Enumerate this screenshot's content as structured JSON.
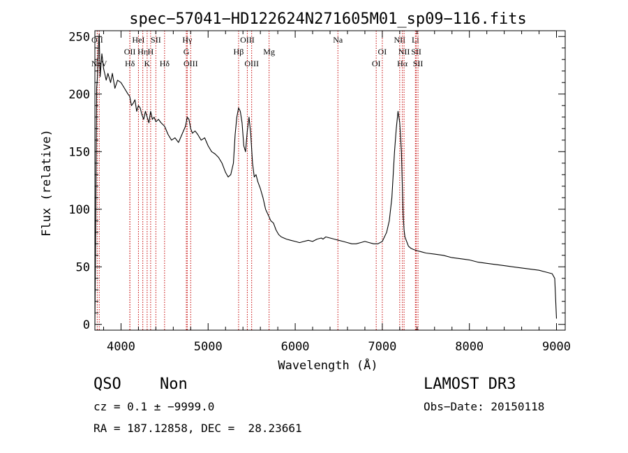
{
  "colors": {
    "axis": "#000000",
    "spectrum": "#000000",
    "line_marker": "#c40000",
    "background": "#ffffff"
  },
  "chart_data": {
    "type": "line",
    "title": "spec−57041−HD122624N271605M01_sp09−116.fits",
    "xlabel": "Wavelength (Å)",
    "ylabel": "Flux (relative)",
    "xlim": [
      3700,
      9100
    ],
    "ylim": [
      -5,
      255
    ],
    "x_ticks": [
      4000,
      5000,
      6000,
      7000,
      8000,
      9000
    ],
    "y_ticks": [
      0,
      50,
      100,
      150,
      200,
      250
    ],
    "x_tick_labels": [
      "4000",
      "5000",
      "6000",
      "7000",
      "8000",
      "9000"
    ],
    "y_tick_labels": [
      "0",
      "50",
      "100",
      "150",
      "200",
      "250"
    ],
    "grid": false,
    "series": [
      {
        "x": [
          3700,
          3710,
          3720,
          3730,
          3740,
          3750,
          3760,
          3780,
          3800,
          3830,
          3850,
          3880,
          3900,
          3930,
          3960,
          4000,
          4040,
          4080,
          4100,
          4120,
          4140,
          4160,
          4180,
          4200,
          4220,
          4240,
          4260,
          4280,
          4300,
          4320,
          4340,
          4360,
          4380,
          4400,
          4430,
          4460,
          4500,
          4540,
          4580,
          4620,
          4660,
          4700,
          4740,
          4760,
          4780,
          4800,
          4820,
          4850,
          4880,
          4920,
          4960,
          5000,
          5040,
          5080,
          5120,
          5160,
          5200,
          5230,
          5260,
          5290,
          5310,
          5330,
          5350,
          5370,
          5390,
          5410,
          5430,
          5450,
          5470,
          5490,
          5510,
          5530,
          5550,
          5570,
          5600,
          5630,
          5660,
          5690,
          5720,
          5750,
          5780,
          5810,
          5840,
          5870,
          5900,
          5950,
          6000,
          6050,
          6100,
          6150,
          6200,
          6250,
          6300,
          6320,
          6350,
          6400,
          6450,
          6500,
          6550,
          6600,
          6650,
          6700,
          6750,
          6800,
          6850,
          6900,
          6950,
          7000,
          7050,
          7080,
          7110,
          7140,
          7160,
          7180,
          7200,
          7220,
          7230,
          7240,
          7250,
          7260,
          7280,
          7300,
          7330,
          7360,
          7400,
          7450,
          7500,
          7600,
          7700,
          7800,
          7900,
          8000,
          8100,
          8200,
          8300,
          8400,
          8500,
          8600,
          8700,
          8800,
          8850,
          8900,
          8950,
          8980,
          9000
        ],
        "y": [
          0,
          90,
          205,
          215,
          240,
          252,
          215,
          235,
          222,
          212,
          218,
          210,
          218,
          205,
          212,
          210,
          205,
          200,
          198,
          190,
          192,
          195,
          185,
          190,
          188,
          182,
          178,
          185,
          180,
          175,
          185,
          178,
          180,
          176,
          178,
          175,
          172,
          165,
          160,
          162,
          158,
          165,
          172,
          180,
          178,
          170,
          166,
          168,
          165,
          160,
          162,
          155,
          150,
          148,
          145,
          140,
          132,
          128,
          130,
          140,
          165,
          180,
          188,
          185,
          175,
          155,
          150,
          168,
          180,
          165,
          140,
          128,
          130,
          124,
          118,
          110,
          100,
          95,
          90,
          88,
          82,
          78,
          76,
          75,
          74,
          73,
          72,
          71,
          72,
          73,
          72,
          74,
          75,
          74,
          76,
          75,
          74,
          73,
          72,
          71,
          70,
          70,
          71,
          72,
          71,
          70,
          70,
          72,
          80,
          90,
          110,
          150,
          170,
          185,
          175,
          150,
          120,
          95,
          82,
          76,
          72,
          68,
          66,
          65,
          64,
          63,
          62,
          61,
          60,
          58,
          57,
          56,
          54,
          53,
          52,
          51,
          50,
          49,
          48,
          47,
          46,
          45,
          44,
          40,
          5
        ]
      }
    ],
    "spectral_lines": [
      {
        "wavelength": 3727,
        "label": "OII",
        "row": 1
      },
      {
        "wavelength": 3750,
        "label": "NeV",
        "row": 3
      },
      {
        "wavelength": 4101,
        "label": "OII",
        "row": 2
      },
      {
        "wavelength": 4102,
        "label": "Hδ",
        "row": 3
      },
      {
        "wavelength": 4200,
        "label": "HeI",
        "row": 1
      },
      {
        "wavelength": 4250,
        "label": "Hη",
        "row": 2
      },
      {
        "wavelength": 4300,
        "label": "K",
        "row": 3
      },
      {
        "wavelength": 4340,
        "label": "H",
        "row": 2
      },
      {
        "wavelength": 4400,
        "label": "SII",
        "row": 1
      },
      {
        "wavelength": 4500,
        "label": "Hδ",
        "row": 3
      },
      {
        "wavelength": 4750,
        "label": "G",
        "row": 2
      },
      {
        "wavelength": 4760,
        "label": "Hγ",
        "row": 1
      },
      {
        "wavelength": 4800,
        "label": "OIII",
        "row": 3
      },
      {
        "wavelength": 5350,
        "label": "Hβ",
        "row": 2
      },
      {
        "wavelength": 5450,
        "label": "OIII",
        "row": 1
      },
      {
        "wavelength": 5500,
        "label": "OIII",
        "row": 3
      },
      {
        "wavelength": 5700,
        "label": "Mg",
        "row": 2
      },
      {
        "wavelength": 6490,
        "label": "Na",
        "row": 1
      },
      {
        "wavelength": 6930,
        "label": "OI",
        "row": 3
      },
      {
        "wavelength": 7000,
        "label": "OI",
        "row": 2
      },
      {
        "wavelength": 7200,
        "label": "NII",
        "row": 1
      },
      {
        "wavelength": 7230,
        "label": "Hα",
        "row": 3
      },
      {
        "wavelength": 7250,
        "label": "NII",
        "row": 2
      },
      {
        "wavelength": 7380,
        "label": "Li",
        "row": 1
      },
      {
        "wavelength": 7390,
        "label": "SII",
        "row": 2
      },
      {
        "wavelength": 7410,
        "label": "SII",
        "row": 3
      }
    ]
  },
  "footer": {
    "class": "QSO",
    "subclass": "Non",
    "survey": "LAMOST DR3",
    "cz": "cz = 0.1 ± −9999.0",
    "obs_date": "Obs−Date: 20150118",
    "radec": "RA = 187.12858, DEC =  28.23661"
  }
}
